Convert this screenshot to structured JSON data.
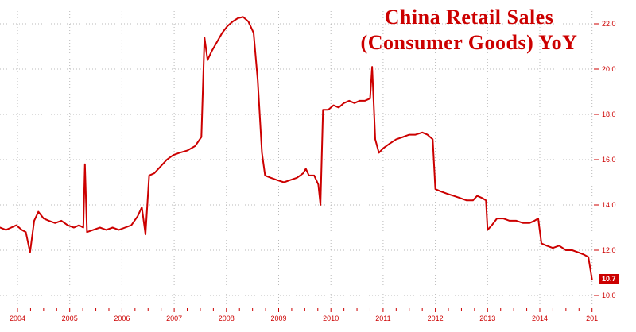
{
  "title": {
    "line1": "China Retail Sales",
    "line2": "(Consumer Goods) YoY"
  },
  "last_value_label": "10.7",
  "colors": {
    "line": "#cc0000",
    "text": "#cc0000",
    "grid": "#b8b8b8",
    "badge_bg": "#cc0000",
    "badge_text": "#ffffff",
    "background": "#ffffff"
  },
  "chart_data": {
    "type": "line",
    "title": "China Retail Sales (Consumer Goods) YoY",
    "xlabel": "",
    "ylabel": "",
    "grid": true,
    "legend": "none",
    "ylim": [
      10.0,
      22.0
    ],
    "xlim": [
      2003.67,
      2015.05
    ],
    "y_tick_labels": [
      "10.0",
      "12.0",
      "14.0",
      "16.0",
      "18.0",
      "20.0",
      "22.0"
    ],
    "x_tick_labels": [
      "2004",
      "2005",
      "2006",
      "2007",
      "2008",
      "2009",
      "2010",
      "2011",
      "2012",
      "2013",
      "2014",
      "201"
    ],
    "last_value": 10.7,
    "series": [
      {
        "name": "China Retail Sales (Consumer Goods) YoY",
        "color": "#cc0000",
        "points": [
          [
            2003.67,
            13.0
          ],
          [
            2003.78,
            12.9
          ],
          [
            2003.88,
            13.0
          ],
          [
            2003.98,
            13.1
          ],
          [
            2004.08,
            12.9
          ],
          [
            2004.16,
            12.8
          ],
          [
            2004.24,
            11.9
          ],
          [
            2004.32,
            13.3
          ],
          [
            2004.4,
            13.7
          ],
          [
            2004.5,
            13.4
          ],
          [
            2004.6,
            13.3
          ],
          [
            2004.72,
            13.2
          ],
          [
            2004.84,
            13.3
          ],
          [
            2004.96,
            13.1
          ],
          [
            2005.08,
            13.0
          ],
          [
            2005.18,
            13.1
          ],
          [
            2005.26,
            13.0
          ],
          [
            2005.29,
            15.8
          ],
          [
            2005.33,
            12.8
          ],
          [
            2005.45,
            12.9
          ],
          [
            2005.58,
            13.0
          ],
          [
            2005.7,
            12.9
          ],
          [
            2005.82,
            13.0
          ],
          [
            2005.94,
            12.9
          ],
          [
            2006.06,
            13.0
          ],
          [
            2006.18,
            13.1
          ],
          [
            2006.3,
            13.5
          ],
          [
            2006.38,
            13.9
          ],
          [
            2006.45,
            12.7
          ],
          [
            2006.52,
            15.3
          ],
          [
            2006.62,
            15.4
          ],
          [
            2006.74,
            15.7
          ],
          [
            2006.86,
            16.0
          ],
          [
            2006.98,
            16.2
          ],
          [
            2007.1,
            16.3
          ],
          [
            2007.25,
            16.4
          ],
          [
            2007.4,
            16.6
          ],
          [
            2007.52,
            17.0
          ],
          [
            2007.58,
            21.4
          ],
          [
            2007.64,
            20.4
          ],
          [
            2007.72,
            20.8
          ],
          [
            2007.82,
            21.2
          ],
          [
            2007.92,
            21.6
          ],
          [
            2008.02,
            21.9
          ],
          [
            2008.12,
            22.1
          ],
          [
            2008.22,
            22.25
          ],
          [
            2008.32,
            22.3
          ],
          [
            2008.42,
            22.1
          ],
          [
            2008.52,
            21.6
          ],
          [
            2008.6,
            19.5
          ],
          [
            2008.68,
            16.3
          ],
          [
            2008.74,
            15.3
          ],
          [
            2008.85,
            15.2
          ],
          [
            2008.97,
            15.1
          ],
          [
            2009.1,
            15.0
          ],
          [
            2009.22,
            15.1
          ],
          [
            2009.35,
            15.2
          ],
          [
            2009.47,
            15.4
          ],
          [
            2009.52,
            15.6
          ],
          [
            2009.58,
            15.3
          ],
          [
            2009.68,
            15.3
          ],
          [
            2009.76,
            14.9
          ],
          [
            2009.8,
            14.0
          ],
          [
            2009.85,
            18.2
          ],
          [
            2009.95,
            18.2
          ],
          [
            2010.05,
            18.4
          ],
          [
            2010.15,
            18.3
          ],
          [
            2010.25,
            18.5
          ],
          [
            2010.35,
            18.6
          ],
          [
            2010.45,
            18.5
          ],
          [
            2010.55,
            18.6
          ],
          [
            2010.65,
            18.6
          ],
          [
            2010.75,
            18.7
          ],
          [
            2010.79,
            20.1
          ],
          [
            2010.85,
            16.9
          ],
          [
            2010.92,
            16.3
          ],
          [
            2011.0,
            16.5
          ],
          [
            2011.12,
            16.7
          ],
          [
            2011.25,
            16.9
          ],
          [
            2011.38,
            17.0
          ],
          [
            2011.5,
            17.1
          ],
          [
            2011.62,
            17.1
          ],
          [
            2011.75,
            17.2
          ],
          [
            2011.85,
            17.1
          ],
          [
            2011.95,
            16.9
          ],
          [
            2012.0,
            14.7
          ],
          [
            2012.1,
            14.6
          ],
          [
            2012.22,
            14.5
          ],
          [
            2012.35,
            14.4
          ],
          [
            2012.48,
            14.3
          ],
          [
            2012.6,
            14.2
          ],
          [
            2012.72,
            14.2
          ],
          [
            2012.8,
            14.4
          ],
          [
            2012.9,
            14.3
          ],
          [
            2012.97,
            14.2
          ],
          [
            2013.0,
            12.9
          ],
          [
            2013.08,
            13.1
          ],
          [
            2013.18,
            13.4
          ],
          [
            2013.3,
            13.4
          ],
          [
            2013.42,
            13.3
          ],
          [
            2013.55,
            13.3
          ],
          [
            2013.68,
            13.2
          ],
          [
            2013.8,
            13.2
          ],
          [
            2013.9,
            13.3
          ],
          [
            2013.97,
            13.4
          ],
          [
            2014.03,
            12.3
          ],
          [
            2014.13,
            12.2
          ],
          [
            2014.25,
            12.1
          ],
          [
            2014.37,
            12.2
          ],
          [
            2014.5,
            12.0
          ],
          [
            2014.62,
            12.0
          ],
          [
            2014.74,
            11.9
          ],
          [
            2014.85,
            11.8
          ],
          [
            2014.93,
            11.7
          ],
          [
            2015.0,
            10.7
          ]
        ]
      }
    ]
  }
}
